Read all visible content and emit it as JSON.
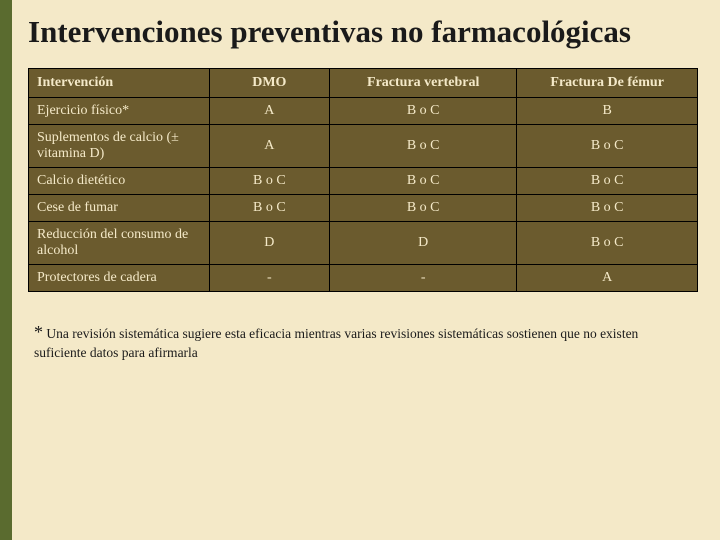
{
  "title": "Intervenciones preventivas no farmacológicas",
  "table": {
    "headers": [
      "Intervención",
      "DMO",
      "Fractura vertebral",
      "Fractura De fémur"
    ],
    "rows": [
      [
        "Ejercicio físico*",
        "A",
        "B o C",
        "B"
      ],
      [
        "Suplementos de calcio (±\nvitamina D)",
        "A",
        "B o C",
        "B o C"
      ],
      [
        "Calcio dietético",
        "B o C",
        "B o C",
        "B o C"
      ],
      [
        "Cese de fumar",
        "B o C",
        "B o C",
        "B o C"
      ],
      [
        "Reducción del consumo de alcohol",
        "D",
        "D",
        "B o C"
      ],
      [
        "Protectores de cadera",
        "-",
        "-",
        "A"
      ]
    ]
  },
  "footnote": {
    "star": "*",
    "text": " Una revisión sistemática sugiere esta eficacia mientras varias revisiones sistemáticas sostienen que no existen suficiente datos para afirmarla"
  },
  "colors": {
    "background": "#f4e9c8",
    "accentBar": "#5a6b2f",
    "tableBg": "#6b5b2e",
    "tableText": "#f4e9c8",
    "border": "#000000",
    "titleText": "#1a1a1a"
  }
}
